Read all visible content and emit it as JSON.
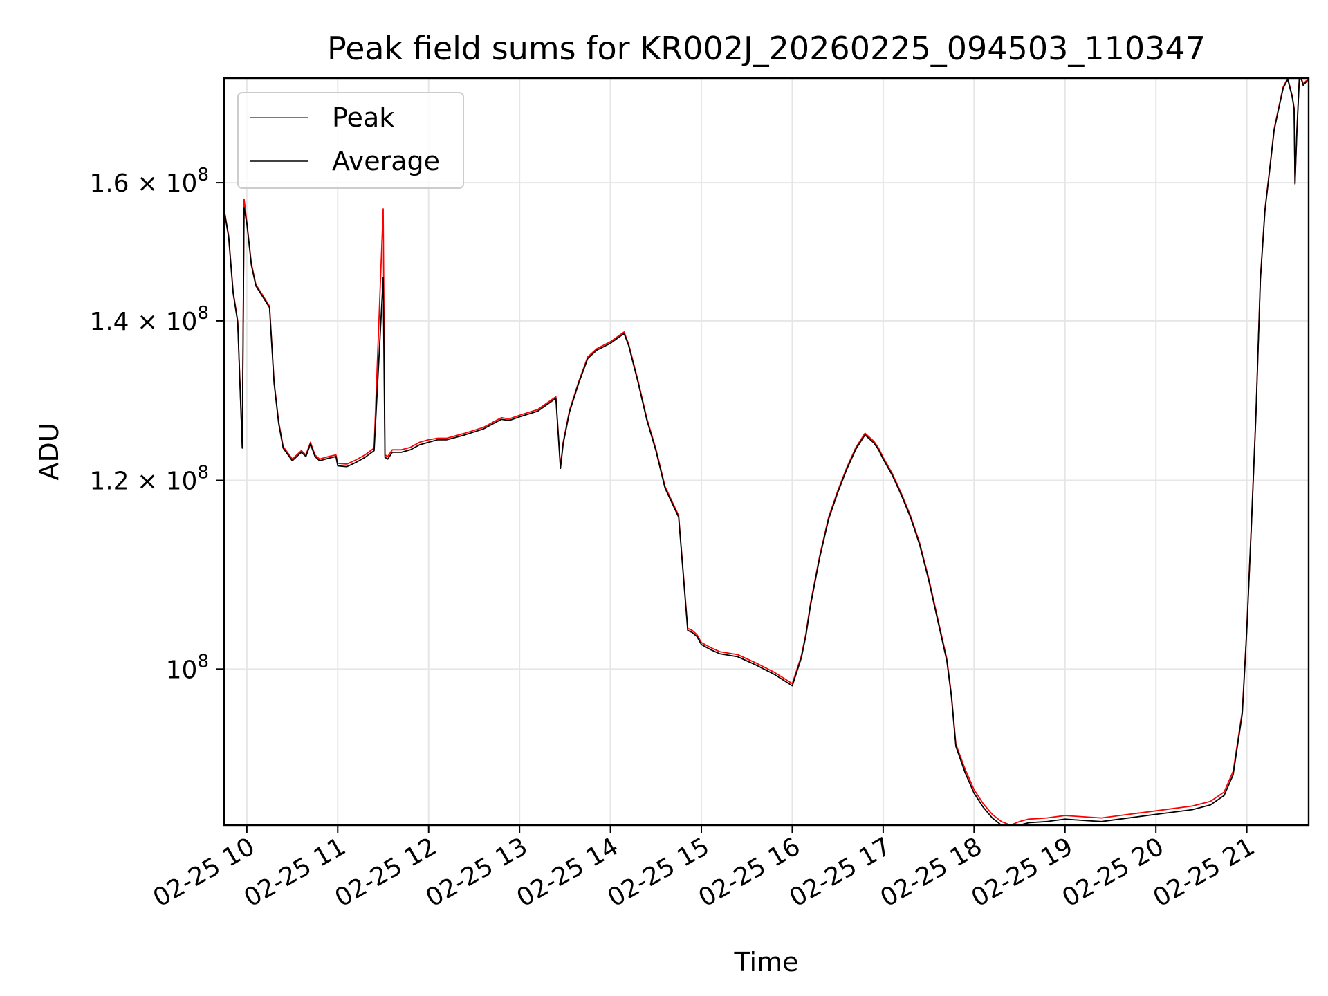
{
  "chart_data": {
    "type": "line",
    "title": "Peak field sums for KR002J_20260225_094503_110347",
    "xlabel": "Time",
    "ylabel": "ADU",
    "yscale": "log",
    "ylim": [
      86000000,
      177000000
    ],
    "xlim_hours": [
      9.75,
      21.68
    ],
    "grid": true,
    "legend_location": "upper-left",
    "x_ticks": [
      {
        "hour": 10,
        "label": "02-25 10"
      },
      {
        "hour": 11,
        "label": "02-25 11"
      },
      {
        "hour": 12,
        "label": "02-25 12"
      },
      {
        "hour": 13,
        "label": "02-25 13"
      },
      {
        "hour": 14,
        "label": "02-25 14"
      },
      {
        "hour": 15,
        "label": "02-25 15"
      },
      {
        "hour": 16,
        "label": "02-25 16"
      },
      {
        "hour": 17,
        "label": "02-25 17"
      },
      {
        "hour": 18,
        "label": "02-25 18"
      },
      {
        "hour": 19,
        "label": "02-25 19"
      },
      {
        "hour": 20,
        "label": "02-25 20"
      },
      {
        "hour": 21,
        "label": "02-25 21"
      }
    ],
    "y_ticks": [
      {
        "value": 100000000,
        "mantissa": "",
        "base": "10",
        "exp": "8"
      },
      {
        "value": 120000000,
        "mantissa": "1.2",
        "base": "10",
        "exp": "8"
      },
      {
        "value": 140000000,
        "mantissa": "1.4",
        "base": "10",
        "exp": "8"
      },
      {
        "value": 160000000,
        "mantissa": "1.6",
        "base": "10",
        "exp": "8"
      }
    ],
    "series": [
      {
        "name": "Peak",
        "color": "#ff0000",
        "x_hours": [
          9.75,
          9.8,
          9.85,
          9.9,
          9.95,
          9.97,
          10.0,
          10.05,
          10.1,
          10.15,
          10.25,
          10.3,
          10.35,
          10.4,
          10.5,
          10.6,
          10.65,
          10.7,
          10.75,
          10.8,
          10.9,
          10.98,
          11.0,
          11.1,
          11.2,
          11.3,
          11.4,
          11.5,
          11.52,
          11.55,
          11.6,
          11.7,
          11.8,
          11.9,
          12.0,
          12.1,
          12.2,
          12.4,
          12.6,
          12.8,
          12.85,
          12.9,
          13.0,
          13.2,
          13.4,
          13.45,
          13.48,
          13.55,
          13.65,
          13.75,
          13.85,
          14.0,
          14.15,
          14.2,
          14.3,
          14.4,
          14.5,
          14.6,
          14.75,
          14.85,
          14.9,
          14.95,
          15.0,
          15.1,
          15.2,
          15.4,
          15.6,
          15.8,
          16.0,
          16.1,
          16.15,
          16.2,
          16.3,
          16.4,
          16.5,
          16.6,
          16.7,
          16.8,
          16.9,
          16.95,
          17.0,
          17.1,
          17.2,
          17.3,
          17.4,
          17.5,
          17.6,
          17.7,
          17.75,
          17.8,
          17.9,
          18.0,
          18.1,
          18.2,
          18.3,
          18.4,
          18.5,
          18.6,
          18.8,
          19.0,
          19.2,
          19.4,
          19.6,
          19.8,
          20.0,
          20.2,
          20.4,
          20.6,
          20.75,
          20.85,
          20.95,
          21.0,
          21.05,
          21.1,
          21.15,
          21.2,
          21.25,
          21.3,
          21.35,
          21.4,
          21.45,
          21.5,
          21.52,
          21.53,
          21.55,
          21.58,
          21.62,
          21.68
        ],
        "values": [
          156000000,
          152000000,
          144000000,
          140000000,
          124000000,
          157500000,
          154000000,
          148000000,
          145000000,
          144000000,
          142000000,
          132000000,
          127000000,
          124000000,
          122500000,
          123500000,
          123000000,
          124500000,
          123000000,
          122500000,
          122800000,
          123000000,
          122000000,
          121900000,
          122400000,
          123000000,
          123800000,
          156000000,
          123000000,
          122800000,
          123600000,
          123600000,
          123900000,
          124500000,
          124800000,
          125000000,
          125000000,
          125600000,
          126300000,
          127500000,
          127400000,
          127400000,
          127800000,
          128500000,
          130100000,
          121600000,
          124500000,
          128400000,
          132000000,
          135200000,
          136300000,
          137200000,
          138500000,
          136900000,
          132300000,
          127400000,
          123700000,
          119300000,
          116000000,
          104000000,
          103800000,
          103400000,
          102600000,
          102100000,
          101700000,
          101400000,
          100600000,
          99700000,
          98600000,
          101300000,
          103500000,
          106500000,
          111500000,
          115800000,
          118800000,
          121500000,
          123900000,
          125600000,
          124600000,
          123800000,
          122700000,
          120800000,
          118500000,
          116000000,
          113000000,
          109200000,
          105000000,
          101000000,
          97600000,
          93000000,
          90800000,
          89000000,
          87800000,
          86900000,
          86300000,
          86000000,
          86300000,
          86500000,
          86600000,
          86800000,
          86700000,
          86600000,
          86800000,
          87000000,
          87200000,
          87400000,
          87600000,
          88000000,
          88800000,
          90600000,
          96000000,
          104000000,
          115000000,
          128000000,
          146000000,
          156000000,
          162000000,
          168500000,
          172000000,
          175500000,
          177000000,
          174000000,
          172000000,
          160000000,
          168000000,
          178000000,
          176000000,
          177000000
        ]
      },
      {
        "name": "Average",
        "color": "#000000",
        "x_hours": [
          9.75,
          9.8,
          9.85,
          9.9,
          9.95,
          9.97,
          10.0,
          10.05,
          10.1,
          10.15,
          10.25,
          10.3,
          10.35,
          10.4,
          10.5,
          10.6,
          10.65,
          10.7,
          10.75,
          10.8,
          10.9,
          10.98,
          11.0,
          11.1,
          11.2,
          11.3,
          11.4,
          11.5,
          11.52,
          11.55,
          11.6,
          11.7,
          11.8,
          11.9,
          12.0,
          12.1,
          12.2,
          12.4,
          12.6,
          12.8,
          12.85,
          12.9,
          13.0,
          13.2,
          13.4,
          13.45,
          13.48,
          13.55,
          13.65,
          13.75,
          13.85,
          14.0,
          14.15,
          14.2,
          14.3,
          14.4,
          14.5,
          14.6,
          14.75,
          14.85,
          14.9,
          14.95,
          15.0,
          15.1,
          15.2,
          15.4,
          15.6,
          15.8,
          16.0,
          16.1,
          16.15,
          16.2,
          16.3,
          16.4,
          16.5,
          16.6,
          16.7,
          16.8,
          16.9,
          16.95,
          17.0,
          17.1,
          17.2,
          17.3,
          17.4,
          17.5,
          17.6,
          17.7,
          17.75,
          17.8,
          17.9,
          18.0,
          18.1,
          18.2,
          18.3,
          18.4,
          18.5,
          18.6,
          18.8,
          19.0,
          19.2,
          19.4,
          19.6,
          19.8,
          20.0,
          20.2,
          20.4,
          20.6,
          20.75,
          20.85,
          20.95,
          21.0,
          21.05,
          21.1,
          21.15,
          21.2,
          21.25,
          21.3,
          21.35,
          21.4,
          21.45,
          21.5,
          21.52,
          21.53,
          21.55,
          21.58,
          21.62,
          21.68
        ],
        "values": [
          155800000,
          151800000,
          143800000,
          139800000,
          123800000,
          156200000,
          153800000,
          147800000,
          144800000,
          143800000,
          141800000,
          131800000,
          126800000,
          123800000,
          122300000,
          123300000,
          122800000,
          124300000,
          122800000,
          122300000,
          122600000,
          122800000,
          121700000,
          121600000,
          122100000,
          122700000,
          123500000,
          146000000,
          122700000,
          122500000,
          123300000,
          123300000,
          123600000,
          124200000,
          124500000,
          124800000,
          124800000,
          125400000,
          126100000,
          127300000,
          127200000,
          127200000,
          127600000,
          128300000,
          129900000,
          121400000,
          124300000,
          128200000,
          131800000,
          135000000,
          136100000,
          137000000,
          138300000,
          136700000,
          132100000,
          127200000,
          123500000,
          119100000,
          115800000,
          103800000,
          103600000,
          103200000,
          102400000,
          101900000,
          101500000,
          101200000,
          100400000,
          99500000,
          98400000,
          101100000,
          103300000,
          106300000,
          111300000,
          115600000,
          118600000,
          121300000,
          123700000,
          125400000,
          124400000,
          123600000,
          122500000,
          120600000,
          118300000,
          115800000,
          112800000,
          109000000,
          104800000,
          100800000,
          97400000,
          92800000,
          90500000,
          88700000,
          87500000,
          86600000,
          86000000,
          85700000,
          86000000,
          86200000,
          86300000,
          86500000,
          86400000,
          86300000,
          86500000,
          86700000,
          86900000,
          87100000,
          87300000,
          87700000,
          88500000,
          90300000,
          95800000,
          103800000,
          114800000,
          127800000,
          145800000,
          155800000,
          161800000,
          168300000,
          171800000,
          175300000,
          176800000,
          173800000,
          171800000,
          159800000,
          167800000,
          177800000,
          175800000,
          176800000
        ]
      }
    ]
  }
}
